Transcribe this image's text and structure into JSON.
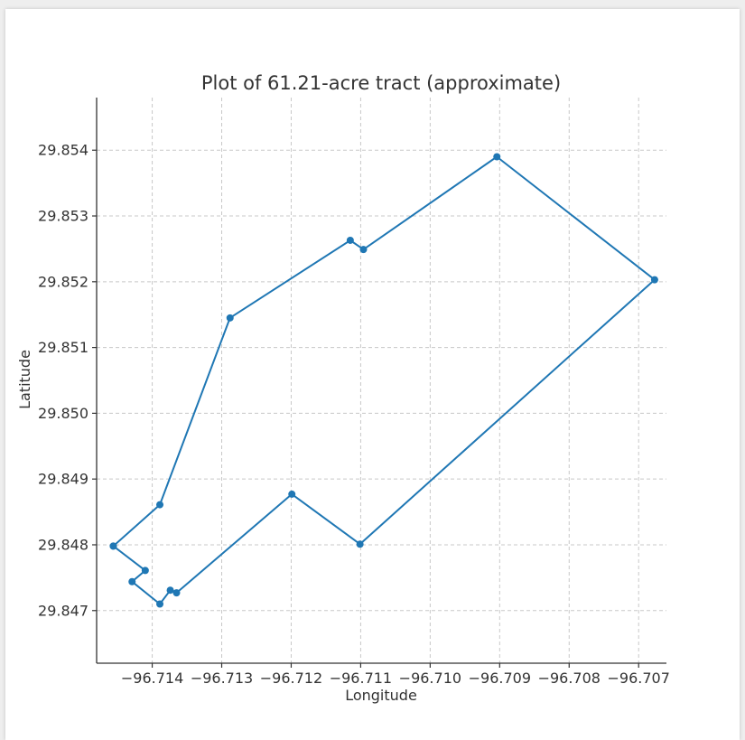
{
  "chart_data": {
    "type": "line",
    "title": "Plot of 61.21-acre tract (approximate)",
    "xlabel": "Longitude",
    "ylabel": "Latitude",
    "xlim": [
      -96.7148,
      -96.7066
    ],
    "ylim": [
      29.8462,
      29.8548
    ],
    "xticks": [
      -96.714,
      -96.713,
      -96.712,
      -96.711,
      -96.71,
      -96.709,
      -96.708,
      -96.707
    ],
    "xtick_labels": [
      "−96.714",
      "−96.713",
      "−96.712",
      "−96.711",
      "−96.710",
      "−96.709",
      "−96.708",
      "−96.707"
    ],
    "yticks": [
      29.847,
      29.848,
      29.849,
      29.85,
      29.851,
      29.852,
      29.853,
      29.854
    ],
    "ytick_labels": [
      "29.847",
      "29.848",
      "29.849",
      "29.850",
      "29.851",
      "29.852",
      "29.853",
      "29.854"
    ],
    "grid": true,
    "grid_style": "dashed",
    "series": [
      {
        "color": "#1f77b4",
        "marker": "circle",
        "points": [
          {
            "x": -96.71456,
            "y": 29.84798
          },
          {
            "x": -96.71389,
            "y": 29.84861
          },
          {
            "x": -96.71288,
            "y": 29.85145
          },
          {
            "x": -96.71115,
            "y": 29.85263
          },
          {
            "x": -96.71096,
            "y": 29.85249
          },
          {
            "x": -96.70904,
            "y": 29.8539
          },
          {
            "x": -96.70677,
            "y": 29.85203
          },
          {
            "x": -96.71101,
            "y": 29.84801
          },
          {
            "x": -96.71199,
            "y": 29.84877
          },
          {
            "x": -96.71365,
            "y": 29.84727
          },
          {
            "x": -96.71374,
            "y": 29.84731
          },
          {
            "x": -96.71389,
            "y": 29.8471
          },
          {
            "x": -96.71429,
            "y": 29.84744
          },
          {
            "x": -96.7141,
            "y": 29.84761
          },
          {
            "x": -96.71456,
            "y": 29.84798
          }
        ]
      }
    ]
  }
}
